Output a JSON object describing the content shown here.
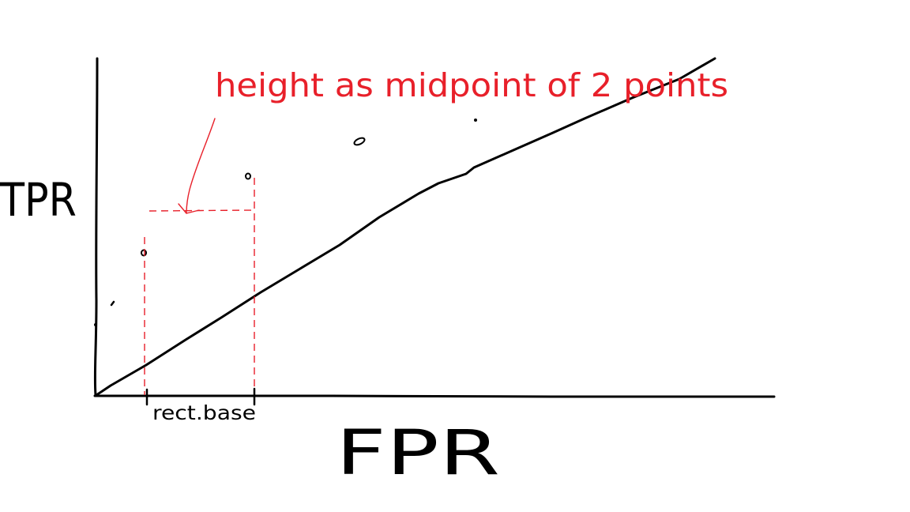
{
  "axes": {
    "y_label": "TPR",
    "x_label": "FPR"
  },
  "annotation": {
    "text": "height as midpoint of 2 points",
    "base_label": "rect.base"
  },
  "colors": {
    "ink": "#000000",
    "annotation": "#e8202a",
    "background": "#ffffff"
  }
}
